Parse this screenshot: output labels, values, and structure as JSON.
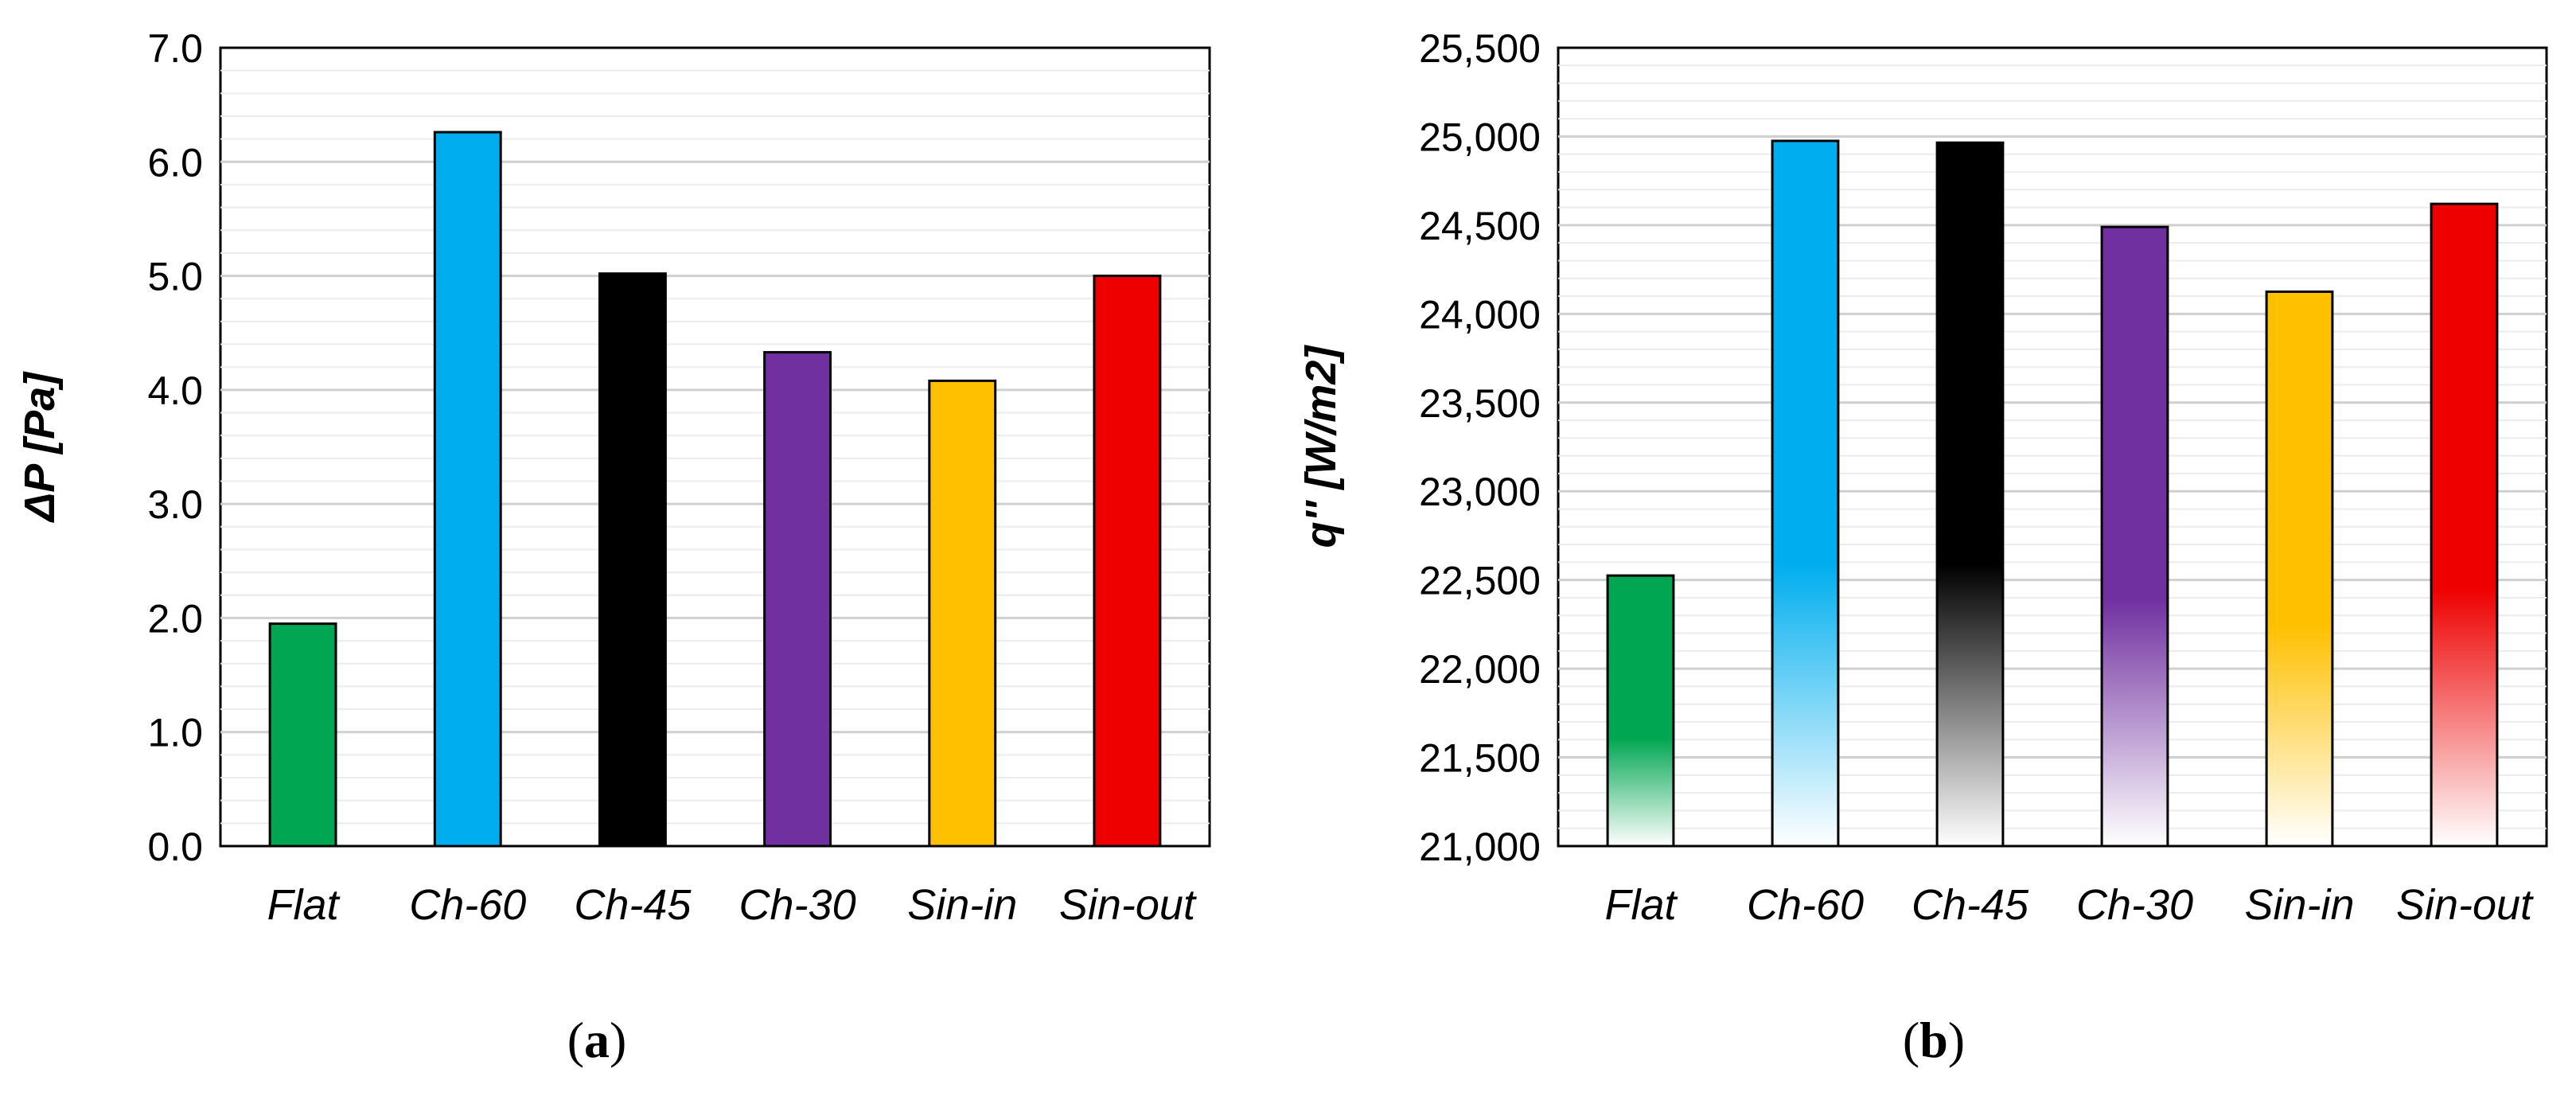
{
  "chart_data": [
    {
      "type": "bar",
      "panel_label": "a",
      "categories": [
        "Flat",
        "Ch-60",
        "Ch-45",
        "Ch-30",
        "Sin-in",
        "Sin-out"
      ],
      "values": [
        1.95,
        6.26,
        5.02,
        4.33,
        4.08,
        5.0
      ],
      "bar_colors": [
        "#00a651",
        "#00aeef",
        "#000000",
        "#7030a0",
        "#ffc000",
        "#ee0000"
      ],
      "gradient_fill": false,
      "title": "",
      "xlabel": "",
      "ylabel": "ΔP [Pa]",
      "ylim": [
        0,
        7
      ],
      "yticks": [
        "0.0",
        "1.0",
        "2.0",
        "3.0",
        "4.0",
        "5.0",
        "6.0",
        "7.0"
      ],
      "grid": true,
      "legend": false
    },
    {
      "type": "bar",
      "panel_label": "b",
      "categories": [
        "Flat",
        "Ch-60",
        "Ch-45",
        "Ch-30",
        "Sin-in",
        "Sin-out"
      ],
      "values": [
        22525,
        24975,
        24965,
        24490,
        24125,
        24620
      ],
      "bar_colors": [
        "#00a651",
        "#00aeef",
        "#000000",
        "#7030a0",
        "#ffc000",
        "#ee0000"
      ],
      "gradient_fill": true,
      "title": "",
      "xlabel": "",
      "ylabel": "q'' [W/m2]",
      "ylim": [
        21000,
        25500
      ],
      "yticks": [
        "21,000",
        "21,500",
        "22,000",
        "22,500",
        "23,000",
        "23,500",
        "24,000",
        "24,500",
        "25,000",
        "25,500"
      ],
      "grid": true,
      "legend": false
    }
  ]
}
